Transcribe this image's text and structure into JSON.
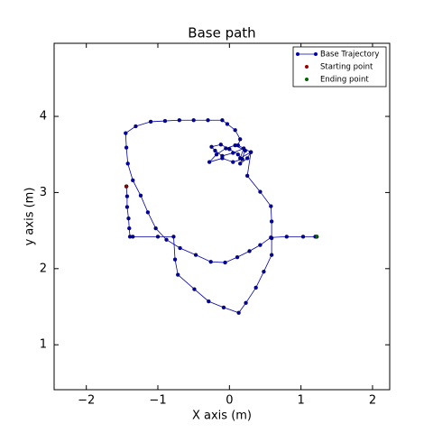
{
  "chart_data": {
    "type": "line",
    "title": "Base path",
    "x_label": "X axis (m)",
    "y_label": "y axis (m)",
    "xlim": [
      -2.45,
      2.24
    ],
    "ylim": [
      0.41,
      4.96
    ],
    "xticks": [
      {
        "value": -2,
        "label": "−2"
      },
      {
        "value": -1,
        "label": "−1"
      },
      0,
      1,
      2
    ],
    "yticks": [
      1,
      2,
      3,
      4
    ],
    "legend": "upper right",
    "series": [
      {
        "name": "Base Trajectory",
        "type": "line",
        "color": "#0000aa",
        "x": [
          -1.44,
          -1.43,
          -1.43,
          -1.41,
          -1.4,
          -1.39,
          -1.35,
          -1.0,
          -0.78,
          -0.76,
          -0.72,
          -0.49,
          -0.29,
          -0.08,
          0.13,
          0.23,
          0.37,
          0.48,
          0.59,
          0.59,
          0.59,
          0.58,
          0.43,
          0.25,
          0.3,
          0.15,
          0.2,
          0.05,
          -0.1,
          -0.2,
          -0.25,
          -0.12,
          0.0,
          0.12,
          0.18,
          0.05,
          -0.1,
          -0.28,
          -0.18,
          -0.05,
          0.08,
          0.22,
          0.15,
          0.25,
          0.3,
          0.12,
          0.15,
          0.08,
          -0.03,
          -0.1,
          -0.3,
          -0.5,
          -0.7,
          -0.9,
          -1.1,
          -1.31,
          -1.45,
          -1.44,
          -1.42,
          -1.35,
          -1.24,
          -1.14,
          -1.03,
          -0.88,
          -0.69,
          -0.47,
          -0.26,
          -0.06,
          0.11,
          0.28,
          0.43,
          0.58,
          0.8,
          1.03,
          1.2,
          1.22
        ],
        "values": [
          3.08,
          2.95,
          2.81,
          2.66,
          2.53,
          2.42,
          2.42,
          2.42,
          2.42,
          2.12,
          1.92,
          1.73,
          1.57,
          1.49,
          1.42,
          1.55,
          1.75,
          1.96,
          2.18,
          2.4,
          2.62,
          2.82,
          3.01,
          3.22,
          3.53,
          3.45,
          3.58,
          3.52,
          3.48,
          3.55,
          3.6,
          3.63,
          3.57,
          3.5,
          3.44,
          3.4,
          3.45,
          3.4,
          3.5,
          3.58,
          3.62,
          3.55,
          3.38,
          3.45,
          3.53,
          3.62,
          3.7,
          3.82,
          3.9,
          3.95,
          3.95,
          3.95,
          3.95,
          3.94,
          3.93,
          3.87,
          3.78,
          3.59,
          3.38,
          3.16,
          2.96,
          2.74,
          2.53,
          2.38,
          2.27,
          2.18,
          2.09,
          2.08,
          2.15,
          2.23,
          2.31,
          2.41,
          2.42,
          2.42,
          2.42,
          2.42
        ]
      },
      {
        "name": "Starting point",
        "type": "scatter",
        "color": "#990000",
        "x": [
          -1.44
        ],
        "values": [
          3.08
        ]
      },
      {
        "name": "Ending point",
        "type": "scatter",
        "color": "#006600",
        "x": [
          1.22
        ],
        "values": [
          2.42
        ]
      }
    ]
  }
}
